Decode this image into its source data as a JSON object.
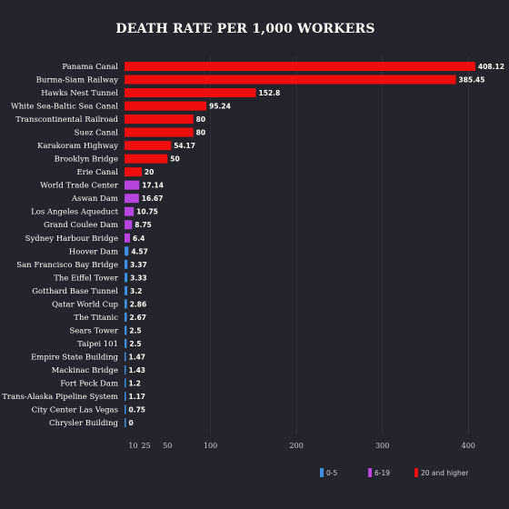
{
  "colors": {
    "background": "#24252c",
    "grid": "#30323a",
    "low": "#3d8fe6",
    "mid": "#b945e0",
    "high": "#ee0e0e"
  },
  "chart_data": {
    "type": "bar",
    "orientation": "horizontal",
    "title": "DEATH RATE PER 1,000 WORKERS",
    "categories": [
      "Panama Canal",
      "Burma-Siam Railway",
      "Hawks Nest Tunnel",
      "White Sea-Baltic Sea Canal",
      "Transcontinental Railroad",
      "Suez Canal",
      "Karakoram Highway",
      "Brooklyn Bridge",
      "Erie Canal",
      "World Trade Center",
      "Aswan Dam",
      "Los Angeles Aqueduct",
      "Grand Coulee Dam",
      "Sydney Harbour Bridge",
      "Hoover Dam",
      "San Francisco Bay Bridge",
      "The Eiffel Tower",
      "Gotthard Base Tunnel",
      "Qatar World Cup",
      "The Titanic",
      "Sears Tower",
      "Taipei 101",
      "Empire State Building",
      "Mackinac Bridge",
      "Fort Peck Dam",
      "Trans-Alaska Pipeline System",
      "City Center Las Vegas",
      "Chrysler Building"
    ],
    "values": [
      408.12,
      385.45,
      152.8,
      95.24,
      80,
      80,
      54.17,
      50,
      20,
      17.14,
      16.67,
      10.75,
      8.75,
      6.4,
      4.57,
      3.37,
      3.33,
      3.2,
      2.86,
      2.67,
      2.5,
      2.5,
      1.47,
      1.43,
      1.2,
      1.17,
      0.75,
      0
    ],
    "value_labels": [
      "408.12",
      "385.45",
      "152.8",
      "95.24",
      "80",
      "80",
      "54.17",
      "50",
      "20",
      "17.14",
      "16.67",
      "10.75",
      "8.75",
      "6.4",
      "4.57",
      "3.37",
      "3.33",
      "3.2",
      "2.86",
      "2.67",
      "2.5",
      "2.5",
      "1.47",
      "1.43",
      "1.2",
      "1.17",
      "0.75",
      "0"
    ],
    "groups": [
      "high",
      "high",
      "high",
      "high",
      "high",
      "high",
      "high",
      "high",
      "high",
      "mid",
      "mid",
      "mid",
      "mid",
      "mid",
      "low",
      "low",
      "low",
      "low",
      "low",
      "low",
      "low",
      "low",
      "low",
      "low",
      "low",
      "low",
      "low",
      "low"
    ],
    "x_ticks": [
      10,
      25,
      50,
      100,
      200,
      300,
      400
    ],
    "xlim": [
      0,
      410
    ],
    "grid": true,
    "legend": [
      {
        "key": "low",
        "label": "0-5"
      },
      {
        "key": "mid",
        "label": "6-19"
      },
      {
        "key": "high",
        "label": "20 and higher"
      }
    ],
    "legend_position": "bottom-right"
  }
}
